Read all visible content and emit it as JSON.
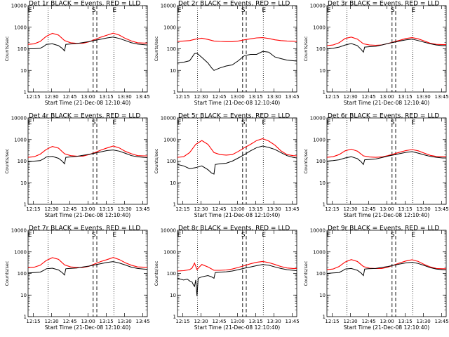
{
  "chart_data": {
    "type": "line",
    "shared": {
      "xlabel": "Start Time (21-Dec-08 12:10:40)",
      "ylabel": "Counts/sec",
      "x_ticks": [
        "12:15",
        "12:30",
        "12:45",
        "13:00",
        "13:15",
        "13:30",
        "13:45"
      ],
      "x_tick_minutes": [
        4.33,
        19.33,
        34.33,
        49.33,
        64.33,
        79.33,
        94.33
      ],
      "xlim_minutes": [
        0,
        98
      ],
      "y_scale": "log",
      "ylim": [
        1,
        10000
      ],
      "y_ticks": [
        "1",
        "10",
        "100",
        "1000",
        "10000"
      ],
      "y_tick_values": [
        1,
        10,
        100,
        1000,
        10000
      ],
      "dotted_lines_minutes": [
        16.5,
        70.5
      ],
      "dashed_lines_minutes": [
        53.5,
        56.5
      ],
      "letters": [
        {
          "text": "E",
          "minute": 1.5
        },
        {
          "text": "S",
          "minute": 54
        },
        {
          "text": "E",
          "minute": 71
        }
      ],
      "series_colors": {
        "events": "#000000",
        "lld": "#ff0000"
      }
    },
    "panels": [
      {
        "title": "Det 1r BLACK = Events, RED = LLD",
        "letters": [
          "E",
          "S",
          "E"
        ],
        "events": {
          "minutes": [
            0,
            5,
            10,
            13,
            15,
            20,
            25,
            28,
            30,
            31,
            34,
            40,
            45,
            50,
            55,
            60,
            65,
            70,
            75,
            80,
            85,
            90,
            95,
            98
          ],
          "values": [
            100,
            100,
            105,
            130,
            160,
            170,
            140,
            105,
            80,
            160,
            165,
            175,
            195,
            215,
            245,
            280,
            320,
            350,
            300,
            240,
            190,
            165,
            155,
            150
          ]
        },
        "lld": {
          "minutes": [
            0,
            5,
            10,
            15,
            20,
            25,
            30,
            35,
            40,
            45,
            50,
            55,
            60,
            65,
            70,
            75,
            80,
            85,
            90,
            95,
            98
          ],
          "values": [
            160,
            170,
            220,
            380,
            520,
            430,
            240,
            190,
            180,
            180,
            210,
            270,
            350,
            430,
            530,
            430,
            300,
            230,
            190,
            185,
            185
          ]
        }
      },
      {
        "title": "Det 2r BLACK = Events, RED = LLD",
        "letters": [
          "E",
          "S",
          "E"
        ],
        "events": {
          "minutes": [
            0,
            5,
            10,
            14,
            16,
            20,
            25,
            28,
            30,
            35,
            40,
            45,
            50,
            55,
            60,
            65,
            70,
            75,
            80,
            85,
            90,
            95,
            98
          ],
          "values": [
            22,
            24,
            28,
            60,
            62,
            40,
            22,
            13,
            10,
            13,
            16,
            18,
            28,
            48,
            55,
            55,
            75,
            70,
            42,
            35,
            30,
            28,
            27
          ]
        },
        "lld": {
          "minutes": [
            0,
            5,
            10,
            15,
            20,
            25,
            30,
            35,
            40,
            45,
            50,
            55,
            60,
            65,
            70,
            75,
            80,
            85,
            90,
            95,
            98
          ],
          "values": [
            220,
            230,
            240,
            280,
            310,
            270,
            230,
            220,
            215,
            215,
            230,
            260,
            290,
            320,
            330,
            300,
            260,
            240,
            230,
            225,
            220
          ]
        }
      },
      {
        "title": "Det 3r BLACK = Events, RED = LLD",
        "letters": [
          "E",
          "S",
          "E"
        ],
        "events": {
          "minutes": [
            0,
            5,
            10,
            15,
            20,
            25,
            28,
            30,
            31,
            35,
            40,
            45,
            50,
            55,
            60,
            65,
            70,
            75,
            80,
            85,
            90,
            95,
            98
          ],
          "values": [
            100,
            105,
            120,
            150,
            175,
            140,
            95,
            70,
            120,
            125,
            130,
            150,
            175,
            200,
            230,
            260,
            280,
            240,
            200,
            170,
            150,
            140,
            140
          ]
        },
        "lld": {
          "minutes": [
            0,
            5,
            10,
            15,
            20,
            25,
            30,
            35,
            40,
            45,
            50,
            55,
            60,
            65,
            70,
            75,
            80,
            85,
            90,
            95,
            98
          ],
          "values": [
            140,
            150,
            190,
            300,
            350,
            280,
            170,
            150,
            145,
            150,
            175,
            210,
            250,
            300,
            330,
            290,
            230,
            180,
            160,
            155,
            155
          ]
        }
      },
      {
        "title": "Det 4r BLACK = Events, RED = LLD",
        "letters": [
          "E",
          "S",
          "E"
        ],
        "events": {
          "minutes": [
            0,
            5,
            10,
            13,
            15,
            20,
            25,
            28,
            30,
            31,
            34,
            40,
            45,
            50,
            55,
            60,
            65,
            70,
            75,
            80,
            85,
            90,
            95,
            98
          ],
          "values": [
            95,
            100,
            105,
            130,
            155,
            165,
            135,
            100,
            75,
            150,
            155,
            165,
            185,
            205,
            235,
            270,
            310,
            330,
            290,
            230,
            180,
            160,
            150,
            145
          ]
        },
        "lld": {
          "minutes": [
            0,
            5,
            10,
            15,
            20,
            25,
            30,
            35,
            40,
            45,
            50,
            55,
            60,
            65,
            70,
            75,
            80,
            85,
            90,
            95,
            98
          ],
          "values": [
            150,
            160,
            210,
            350,
            480,
            400,
            220,
            180,
            170,
            170,
            200,
            250,
            330,
            410,
            500,
            410,
            280,
            220,
            180,
            175,
            175
          ]
        }
      },
      {
        "title": "Det 5r BLACK = Events, RED = LLD",
        "letters": [
          "E",
          "S",
          "E"
        ],
        "events": {
          "minutes": [
            0,
            5,
            10,
            15,
            20,
            25,
            28,
            30,
            31,
            35,
            40,
            45,
            50,
            55,
            60,
            65,
            70,
            75,
            80,
            85,
            90,
            95,
            98
          ],
          "values": [
            70,
            60,
            45,
            50,
            60,
            40,
            28,
            25,
            70,
            75,
            80,
            100,
            140,
            200,
            300,
            420,
            500,
            430,
            350,
            250,
            180,
            150,
            140
          ]
        },
        "lld": {
          "minutes": [
            0,
            5,
            10,
            15,
            20,
            25,
            30,
            35,
            40,
            45,
            50,
            55,
            60,
            65,
            70,
            75,
            80,
            85,
            90,
            95,
            98
          ],
          "values": [
            150,
            160,
            250,
            600,
            900,
            600,
            250,
            200,
            190,
            200,
            280,
            420,
            600,
            900,
            1100,
            850,
            550,
            300,
            200,
            180,
            175
          ]
        }
      },
      {
        "title": "Det 6r BLACK = Events, RED = LLD",
        "letters": [
          "E",
          "S",
          "E"
        ],
        "events": {
          "minutes": [
            0,
            5,
            10,
            15,
            20,
            25,
            28,
            30,
            31,
            35,
            40,
            45,
            50,
            55,
            60,
            65,
            70,
            75,
            80,
            85,
            90,
            95,
            98
          ],
          "values": [
            100,
            105,
            115,
            140,
            160,
            130,
            95,
            70,
            115,
            120,
            125,
            145,
            170,
            195,
            225,
            255,
            275,
            235,
            195,
            165,
            150,
            140,
            140
          ]
        },
        "lld": {
          "minutes": [
            0,
            5,
            10,
            15,
            20,
            25,
            30,
            35,
            40,
            45,
            50,
            55,
            60,
            65,
            70,
            75,
            80,
            85,
            90,
            95,
            98
          ],
          "values": [
            150,
            160,
            200,
            300,
            360,
            290,
            175,
            155,
            150,
            155,
            180,
            215,
            260,
            310,
            345,
            300,
            235,
            185,
            165,
            160,
            160
          ]
        }
      },
      {
        "title": "Det 7r BLACK = Events, RED = LLD",
        "letters": [
          "E",
          "S",
          "E"
        ],
        "events": {
          "minutes": [
            0,
            5,
            10,
            13,
            15,
            20,
            25,
            28,
            30,
            31,
            34,
            40,
            45,
            50,
            55,
            60,
            65,
            70,
            75,
            80,
            85,
            90,
            95,
            98
          ],
          "values": [
            105,
            110,
            115,
            140,
            165,
            175,
            145,
            110,
            85,
            165,
            170,
            180,
            200,
            220,
            250,
            285,
            325,
            355,
            305,
            245,
            195,
            170,
            160,
            155
          ]
        },
        "lld": {
          "minutes": [
            0,
            5,
            10,
            15,
            20,
            25,
            30,
            35,
            40,
            45,
            50,
            55,
            60,
            65,
            70,
            75,
            80,
            85,
            90,
            95,
            98
          ],
          "values": [
            190,
            195,
            240,
            400,
            540,
            450,
            250,
            200,
            190,
            190,
            215,
            280,
            360,
            440,
            550,
            440,
            310,
            240,
            200,
            195,
            195
          ]
        }
      },
      {
        "title": "Det 8r BLACK = Events, RED = LLD",
        "letters": [
          "E",
          "S",
          "E"
        ],
        "events": {
          "minutes": [
            0,
            5,
            8,
            10,
            12,
            13,
            14,
            15,
            16,
            17,
            20,
            25,
            28,
            30,
            31,
            35,
            40,
            45,
            50,
            55,
            60,
            65,
            70,
            75,
            80,
            85,
            90,
            95,
            98
          ],
          "values": [
            60,
            50,
            55,
            45,
            40,
            30,
            25,
            50,
            9,
            60,
            70,
            80,
            70,
            60,
            110,
            115,
            120,
            130,
            150,
            175,
            200,
            230,
            260,
            240,
            200,
            170,
            150,
            140,
            135
          ]
        },
        "lld": {
          "minutes": [
            0,
            5,
            10,
            12,
            14,
            16,
            18,
            20,
            25,
            30,
            35,
            40,
            45,
            50,
            55,
            60,
            65,
            70,
            75,
            80,
            85,
            90,
            95,
            98
          ],
          "values": [
            130,
            135,
            150,
            180,
            300,
            150,
            200,
            260,
            200,
            140,
            140,
            145,
            160,
            190,
            230,
            280,
            330,
            360,
            320,
            260,
            210,
            180,
            170,
            170
          ]
        }
      },
      {
        "title": "Det 9r BLACK = Events, RED = LLD",
        "letters": [
          "E",
          "S",
          "E"
        ],
        "events": {
          "minutes": [
            0,
            5,
            10,
            13,
            15,
            20,
            25,
            28,
            30,
            31,
            34,
            40,
            45,
            50,
            55,
            60,
            65,
            70,
            75,
            80,
            85,
            90,
            95,
            98
          ],
          "values": [
            100,
            105,
            110,
            135,
            160,
            170,
            140,
            105,
            80,
            160,
            165,
            170,
            190,
            210,
            240,
            275,
            310,
            330,
            290,
            235,
            185,
            160,
            150,
            145
          ]
        },
        "lld": {
          "minutes": [
            0,
            5,
            10,
            15,
            20,
            25,
            30,
            35,
            40,
            45,
            50,
            55,
            60,
            65,
            70,
            75,
            80,
            85,
            90,
            95,
            98
          ],
          "values": [
            150,
            160,
            210,
            340,
            440,
            360,
            210,
            175,
            170,
            170,
            195,
            245,
            310,
            380,
            430,
            360,
            260,
            200,
            170,
            165,
            165
          ]
        }
      }
    ]
  }
}
